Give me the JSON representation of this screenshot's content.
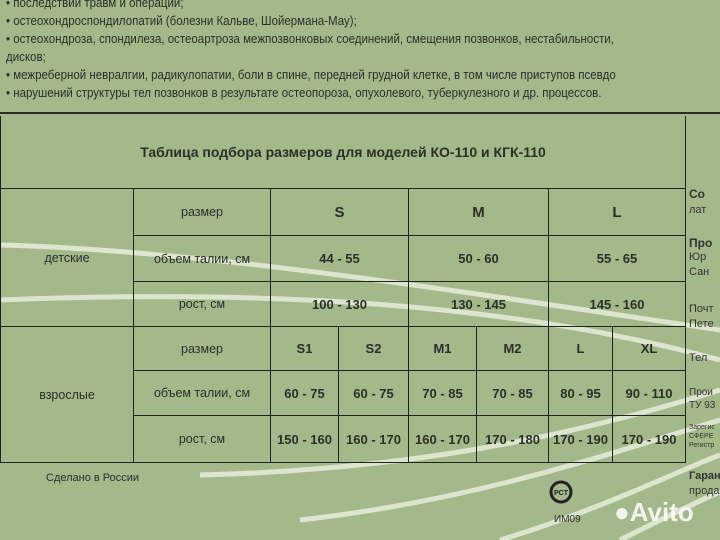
{
  "top_list": [
    "• последствий травм и операций;",
    "• остеохондроспондилопатий (болезни Кальве, Шойермана-Мау);",
    "• остеохондроза, спондилеза, остеоартроза межпозвонковых соединений, смещения позвонков, нестабильности,",
    "дисков;",
    "•  межреберной невралгии, радикулопатии, боли в спине, передней грудной клетке, в том числе приступов псевдо",
    "• нарушений структуры тел позвонков в результате остеопороза, опухолевого, туберкулезного и др. процессов."
  ],
  "table": {
    "title": "Таблица подбора размеров для моделей КО-110 и КГК-110",
    "children": {
      "group": "детские",
      "size_label": "размер",
      "waist_label": "объем талии, см",
      "height_label": "рост, см",
      "sizes": [
        "S",
        "M",
        "L"
      ],
      "waist": [
        "44 - 55",
        "50 - 60",
        "55 - 65"
      ],
      "height": [
        "100 - 130",
        "130 - 145",
        "145 - 160"
      ]
    },
    "adults": {
      "group": "взрослые",
      "size_label": "размер",
      "waist_label": "объем талии, см",
      "height_label": "рост, см",
      "sizes": [
        "S1",
        "S2",
        "M1",
        "M2",
        "L",
        "XL"
      ],
      "waist": [
        "60 - 75",
        "60 - 75",
        "70 - 85",
        "70 - 85",
        "80 - 95",
        "90 - 110"
      ],
      "height": [
        "150 - 160",
        "160 - 170",
        "160 - 170",
        "170 - 180",
        "170 - 190",
        "170 - 190"
      ]
    }
  },
  "side_text": [
    "Со",
    "лат",
    "Про",
    "Юр",
    "Сан",
    "Почт",
    "Пете",
    "Тел",
    "Прои",
    "ТУ 93",
    "Зарегис",
    "СФЕРЕ",
    "Регистр",
    "Гаран",
    "прода"
  ],
  "made_in": "Сделано в России",
  "cert_mark": "PCT",
  "cert_code": "ИМ09",
  "watermark": "Avito"
}
